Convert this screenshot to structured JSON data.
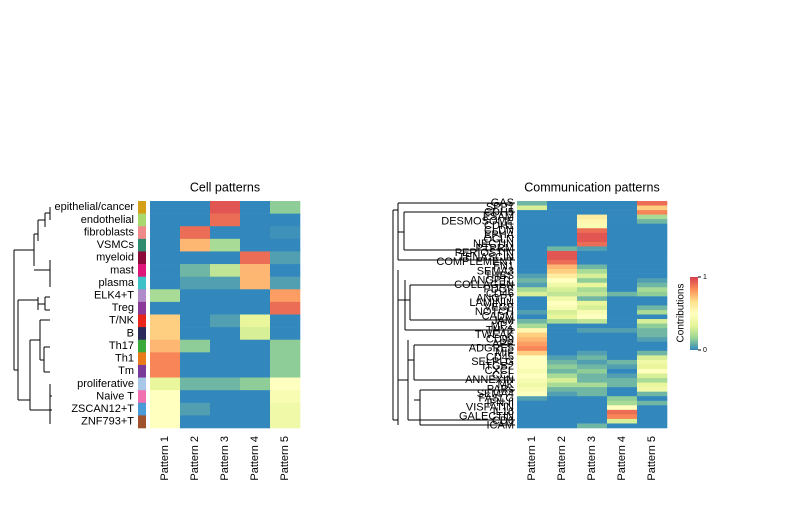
{
  "chart_data": [
    {
      "type": "heatmap",
      "title": "Cell patterns",
      "categories": [
        "Pattern 1",
        "Pattern 2",
        "Pattern 3",
        "Pattern 4",
        "Pattern 5"
      ],
      "rows": [
        "epithelial/cancer",
        "endothelial",
        "fibroblasts",
        "VSMCs",
        "myeloid",
        "mast",
        "plasma",
        "ELK4+T",
        "Treg",
        "T/NK",
        "B",
        "Th17",
        "Th1",
        "Tm",
        "proliferative",
        "Naive T",
        "ZSCAN12+T",
        "ZNF793+T"
      ],
      "row_colors": [
        "#d4a017",
        "#a8d86e",
        "#f08a8a",
        "#2e8b6e",
        "#8b0a3a",
        "#e0157a",
        "#3ec1c9",
        "#b08cc8",
        "#8b3a9a",
        "#e8261c",
        "#2a2a5a",
        "#3aa83a",
        "#e87a1c",
        "#7b3a9a",
        "#a8c8e8",
        "#f070b0",
        "#4a9ad8",
        "#a0522d"
      ],
      "values": [
        [
          0,
          0,
          0.95,
          0,
          0.15
        ],
        [
          0,
          0,
          0.9,
          0,
          0
        ],
        [
          0,
          0.9,
          0,
          0,
          0.02
        ],
        [
          0,
          0.75,
          0.2,
          0,
          0
        ],
        [
          0,
          0,
          0,
          0.9,
          0.05
        ],
        [
          0,
          0.1,
          0.25,
          0.75,
          0
        ],
        [
          0,
          0.05,
          0.05,
          0.75,
          0.05
        ],
        [
          0.2,
          0,
          0,
          0,
          0.8
        ],
        [
          0,
          0,
          0,
          0,
          0.9
        ],
        [
          0.7,
          0,
          0.05,
          0.35,
          0
        ],
        [
          0.7,
          0,
          0,
          0.3,
          0
        ],
        [
          0.75,
          0.15,
          0,
          0,
          0.15
        ],
        [
          0.85,
          0,
          0,
          0,
          0.15
        ],
        [
          0.85,
          0,
          0,
          0,
          0.15
        ],
        [
          0.35,
          0.1,
          0.1,
          0.15,
          0.5
        ],
        [
          0.5,
          0,
          0,
          0,
          0.45
        ],
        [
          0.5,
          0.05,
          0,
          0,
          0.4
        ],
        [
          0.5,
          0,
          0,
          0,
          0.4
        ]
      ],
      "clim": [
        0,
        1
      ],
      "colormap": [
        "#3288bd",
        "#99d594",
        "#e6f598",
        "#ffffbf",
        "#fee08b",
        "#fc8d59",
        "#d53e4f"
      ]
    },
    {
      "type": "heatmap",
      "title": "Communication patterns",
      "categories": [
        "Pattern 1",
        "Pattern 2",
        "Pattern 3",
        "Pattern 4",
        "Pattern 5"
      ],
      "rows": [
        "GAS",
        "SPP1",
        "CDH5",
        "ESAM",
        "DESMOSOME",
        "CDH1",
        "CLDN",
        "EPHA",
        "OCLN",
        "NECTIN",
        "PTPRM",
        "PERIOSTIN",
        "TENASCIN",
        "COMPLEMENT",
        "FN1",
        "SEMA3",
        "THBS",
        "ANGPTL",
        "COLLAGEN",
        "PDGF",
        "CD46",
        "ANGPT",
        "LAMININ",
        "VEGF",
        "NOTCH",
        "CADM",
        "JAM",
        "MPZ",
        "THY1",
        "TWEAK",
        "CD99",
        "APP",
        "ADGRE5",
        "MIF",
        "CD45",
        "SELPLG",
        "ITGB2",
        "CXCL",
        "CCL",
        "ANNEXIN",
        "MK",
        "PARs",
        "SEMA4",
        "FASLG",
        "IFN-II",
        "VISFATIN",
        "IL16",
        "GALECTIN",
        "CD6",
        "ICAM"
      ],
      "values": [
        [
          0.1,
          0,
          0,
          0,
          0.9
        ],
        [
          0.3,
          0,
          0,
          0,
          0.7
        ],
        [
          0,
          0,
          0,
          0,
          0.85
        ],
        [
          0,
          0,
          0.6,
          0,
          0.2
        ],
        [
          0,
          0,
          0.55,
          0,
          0.1
        ],
        [
          0,
          0,
          0.45,
          0,
          0
        ],
        [
          0,
          0,
          0.9,
          0,
          0
        ],
        [
          0,
          0,
          0.95,
          0,
          0
        ],
        [
          0,
          0,
          0.95,
          0,
          0
        ],
        [
          0,
          0,
          0.9,
          0,
          0
        ],
        [
          0,
          0.1,
          0.05,
          0,
          0
        ],
        [
          0,
          0.95,
          0,
          0,
          0
        ],
        [
          0,
          0.95,
          0,
          0,
          0
        ],
        [
          0,
          0.9,
          0,
          0,
          0
        ],
        [
          0,
          0.75,
          0.1,
          0,
          0
        ],
        [
          0,
          0.7,
          0.2,
          0,
          0
        ],
        [
          0.05,
          0.6,
          0.3,
          0,
          0
        ],
        [
          0.1,
          0.5,
          0.15,
          0,
          0.05
        ],
        [
          0.05,
          0.4,
          0.35,
          0,
          0.1
        ],
        [
          0.2,
          0.3,
          0.2,
          0,
          0.2
        ],
        [
          0.3,
          0.25,
          0.25,
          0.1,
          0.15
        ],
        [
          0,
          0.4,
          0.1,
          0,
          0
        ],
        [
          0,
          0.5,
          0.35,
          0,
          0
        ],
        [
          0,
          0.45,
          0.3,
          0,
          0.1
        ],
        [
          0.05,
          0.3,
          0.45,
          0,
          0.2
        ],
        [
          0,
          0.35,
          0.5,
          0,
          0
        ],
        [
          0.1,
          0.2,
          0.25,
          0,
          0.3
        ],
        [
          0.2,
          0,
          0,
          0,
          0.15
        ],
        [
          0.55,
          0,
          0.05,
          0.05,
          0.1
        ],
        [
          0.7,
          0,
          0,
          0,
          0.1
        ],
        [
          0.75,
          0,
          0,
          0,
          0.05
        ],
        [
          0.8,
          0,
          0,
          0,
          0
        ],
        [
          0.85,
          0,
          0,
          0,
          0
        ],
        [
          0.7,
          0,
          0.05,
          0,
          0.1
        ],
        [
          0.5,
          0.05,
          0.1,
          0,
          0.3
        ],
        [
          0.5,
          0.1,
          0.05,
          0.1,
          0.4
        ],
        [
          0.5,
          0.15,
          0.1,
          0.05,
          0.35
        ],
        [
          0.45,
          0.1,
          0.15,
          0,
          0.5
        ],
        [
          0.5,
          0.2,
          0.1,
          0.05,
          0.3
        ],
        [
          0.45,
          0.3,
          0.1,
          0.1,
          0.2
        ],
        [
          0.4,
          0.2,
          0.2,
          0.1,
          0.35
        ],
        [
          0.45,
          0.1,
          0.1,
          0,
          0.4
        ],
        [
          0.5,
          0.05,
          0.1,
          0,
          0.1
        ],
        [
          0.05,
          0,
          0,
          0.15,
          0
        ],
        [
          0,
          0,
          0,
          0.2,
          0.1
        ],
        [
          0,
          0,
          0,
          0.5,
          0
        ],
        [
          0,
          0,
          0,
          0.9,
          0
        ],
        [
          0,
          0,
          0,
          0.85,
          0
        ],
        [
          0,
          0,
          0,
          0.3,
          0
        ],
        [
          0,
          0,
          0.1,
          0,
          0
        ]
      ],
      "clim": [
        0,
        1
      ],
      "colormap": [
        "#3288bd",
        "#99d594",
        "#e6f598",
        "#ffffbf",
        "#fee08b",
        "#fc8d59",
        "#d53e4f"
      ],
      "colorbar_label": "Contributions",
      "colorbar_ticks": [
        0,
        1
      ]
    }
  ]
}
